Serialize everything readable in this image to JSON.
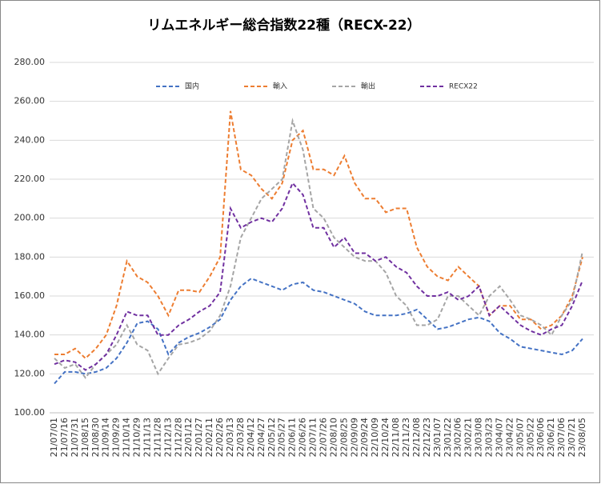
{
  "chart_data": {
    "type": "line",
    "title": "リムエネルギー総合指数22種（RECX-22）",
    "categories": [
      "21/07/01",
      "21/07/16",
      "21/07/31",
      "21/08/15",
      "21/08/30",
      "21/09/14",
      "21/09/29",
      "21/10/14",
      "21/10/29",
      "21/11/13",
      "21/11/28",
      "21/12/13",
      "21/12/28",
      "22/01/12",
      "22/01/27",
      "22/02/11",
      "22/02/26",
      "22/03/13",
      "22/03/28",
      "22/04/12",
      "22/04/27",
      "22/05/12",
      "22/05/27",
      "22/06/11",
      "22/06/26",
      "22/07/11",
      "22/07/26",
      "22/08/10",
      "22/08/25",
      "22/09/09",
      "22/09/24",
      "22/10/09",
      "22/10/24",
      "22/11/08",
      "22/11/23",
      "22/12/08",
      "22/12/23",
      "23/01/07",
      "23/01/22",
      "23/02/06",
      "23/02/21",
      "23/03/08",
      "23/03/23",
      "23/04/07",
      "23/04/22",
      "23/05/07",
      "23/05/22",
      "23/06/06",
      "23/06/21",
      "23/07/06",
      "23/07/21",
      "23/08/05"
    ],
    "series": [
      {
        "name": "国内",
        "color": "#4472c4",
        "values": [
          115,
          121,
          121,
          120,
          121,
          123,
          128,
          136,
          146,
          147,
          143,
          130,
          136,
          139,
          141,
          144,
          148,
          158,
          165,
          169,
          167,
          165,
          163,
          166,
          167,
          163,
          162,
          160,
          158,
          156,
          152,
          150,
          150,
          150,
          151,
          153,
          148,
          143,
          144,
          146,
          148,
          149,
          147,
          141,
          138,
          134,
          133,
          132,
          131,
          130,
          132,
          138
        ]
      },
      {
        "name": "輸入",
        "color": "#ed7d31",
        "values": [
          130,
          130,
          133,
          128,
          133,
          140,
          155,
          178,
          170,
          167,
          160,
          150,
          163,
          163,
          162,
          170,
          180,
          255,
          225,
          222,
          215,
          210,
          218,
          240,
          245,
          225,
          225,
          222,
          232,
          218,
          210,
          210,
          203,
          205,
          205,
          185,
          175,
          170,
          168,
          175,
          170,
          165,
          150,
          155,
          155,
          148,
          148,
          143,
          145,
          150,
          160,
          180
        ]
      },
      {
        "name": "輸出",
        "color": "#a5a5a5",
        "values": [
          128,
          123,
          125,
          118,
          125,
          130,
          135,
          145,
          135,
          132,
          120,
          128,
          135,
          136,
          138,
          142,
          150,
          165,
          190,
          200,
          210,
          215,
          220,
          250,
          235,
          205,
          200,
          190,
          185,
          180,
          178,
          178,
          172,
          160,
          155,
          145,
          145,
          148,
          160,
          160,
          155,
          150,
          160,
          165,
          158,
          150,
          148,
          145,
          140,
          150,
          158,
          183
        ]
      },
      {
        "name": "RECX22",
        "color": "#7030a0",
        "values": [
          125,
          127,
          126,
          122,
          125,
          130,
          140,
          152,
          150,
          150,
          140,
          140,
          145,
          148,
          152,
          155,
          162,
          205,
          195,
          198,
          200,
          198,
          205,
          218,
          212,
          195,
          195,
          185,
          190,
          182,
          182,
          178,
          180,
          175,
          172,
          165,
          160,
          160,
          162,
          158,
          160,
          165,
          150,
          155,
          150,
          145,
          142,
          140,
          143,
          145,
          155,
          168
        ]
      }
    ],
    "ylim": [
      100,
      280
    ],
    "yticks": [
      {
        "value": 100,
        "label": "100.00"
      },
      {
        "value": 120,
        "label": "120.00"
      },
      {
        "value": 140,
        "label": "140.00"
      },
      {
        "value": 160,
        "label": "160.00"
      },
      {
        "value": 180,
        "label": "180.00"
      },
      {
        "value": 200,
        "label": "200.00"
      },
      {
        "value": 220,
        "label": "220.00"
      },
      {
        "value": 240,
        "label": "240.00"
      },
      {
        "value": 260,
        "label": "260.00"
      },
      {
        "value": 280,
        "label": "280.00"
      }
    ],
    "grid": true,
    "line_style": "dashed",
    "legend": "top"
  }
}
